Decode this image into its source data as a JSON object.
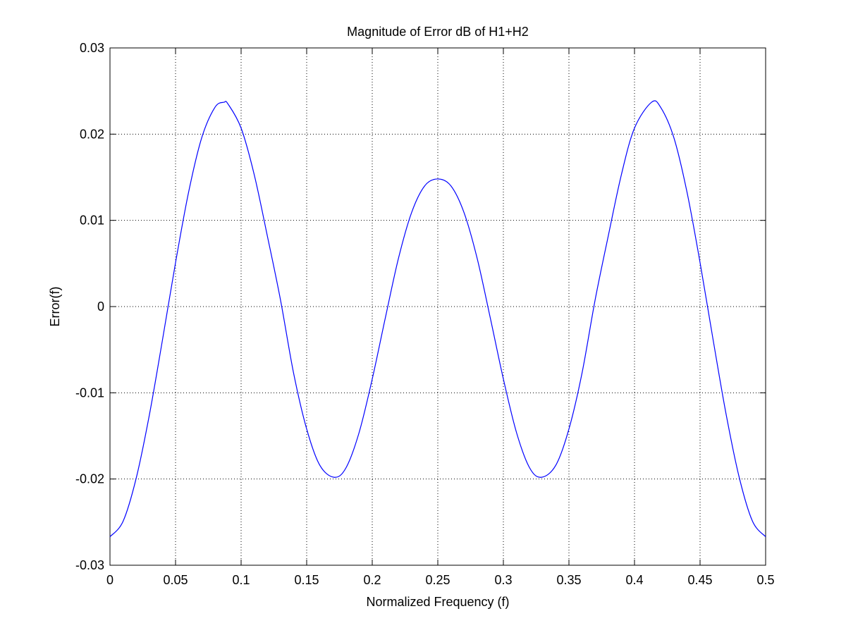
{
  "chart_data": {
    "type": "line",
    "title": "Magnitude of Error dB of H1+H2",
    "xlabel": "Normalized Frequency (f)",
    "ylabel": "Error(f)",
    "xlim": [
      0,
      0.5
    ],
    "ylim": [
      -0.03,
      0.03
    ],
    "grid": true,
    "xticks": [
      0,
      0.05,
      0.1,
      0.15,
      0.2,
      0.25,
      0.3,
      0.35,
      0.4,
      0.45,
      0.5
    ],
    "yticks": [
      -0.03,
      -0.02,
      -0.01,
      0,
      0.01,
      0.02,
      0.03
    ],
    "xtick_labels": [
      "0",
      "0.05",
      "0.1",
      "0.15",
      "0.2",
      "0.25",
      "0.3",
      "0.35",
      "0.4",
      "0.45",
      "0.5"
    ],
    "ytick_labels": [
      "-0.03",
      "-0.02",
      "-0.01",
      "0",
      "0.01",
      "0.02",
      "0.03"
    ],
    "series": [
      {
        "color": "#0000ff",
        "x": [
          0,
          0.01,
          0.02,
          0.03,
          0.04,
          0.05,
          0.06,
          0.07,
          0.08,
          0.087,
          0.09,
          0.1,
          0.11,
          0.12,
          0.13,
          0.14,
          0.15,
          0.16,
          0.171,
          0.18,
          0.19,
          0.2,
          0.21,
          0.22,
          0.23,
          0.24,
          0.25,
          0.26,
          0.27,
          0.28,
          0.29,
          0.3,
          0.31,
          0.32,
          0.329,
          0.34,
          0.35,
          0.36,
          0.37,
          0.38,
          0.39,
          0.4,
          0.413,
          0.42,
          0.43,
          0.44,
          0.45,
          0.46,
          0.47,
          0.48,
          0.49,
          0.5
        ],
        "y": [
          -0.0267,
          -0.0249,
          -0.0199,
          -0.0126,
          -0.0039,
          0.0051,
          0.0133,
          0.0196,
          0.0231,
          0.0237,
          0.0235,
          0.0207,
          0.0153,
          0.0082,
          0.0008,
          -0.0077,
          -0.0142,
          -0.0184,
          -0.0198,
          -0.0187,
          -0.0146,
          -0.0084,
          -0.0013,
          0.0056,
          0.0109,
          0.014,
          0.0148,
          0.014,
          0.0109,
          0.0056,
          -0.0013,
          -0.0084,
          -0.0146,
          -0.0187,
          -0.0198,
          -0.0184,
          -0.0142,
          -0.0077,
          0.0008,
          0.0082,
          0.0153,
          0.0207,
          0.0237,
          0.0231,
          0.0196,
          0.0133,
          0.0051,
          -0.0039,
          -0.0126,
          -0.0199,
          -0.0249,
          -0.0267
        ]
      }
    ]
  }
}
